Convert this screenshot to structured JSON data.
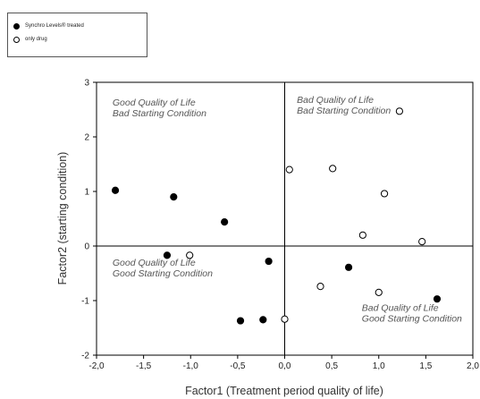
{
  "chart_data": {
    "type": "scatter",
    "xlabel": "Factor1 (Treatment period quality of life)",
    "ylabel": "Factor2 (starting condition)",
    "xlim": [
      -2.0,
      2.0
    ],
    "ylim": [
      -2,
      3
    ],
    "x_ticks": [
      "-2,0",
      "-1,5",
      "-1,0",
      "-0,5",
      "0,0",
      "0,5",
      "1,0",
      "1,5",
      "2,0"
    ],
    "y_ticks": [
      "-2",
      "-1",
      "0",
      "1",
      "2",
      "3"
    ],
    "reference_lines": {
      "x": 0,
      "y": 0
    },
    "legend": {
      "position": "top-left outside"
    },
    "series": [
      {
        "name": "Synchro Levels® treated",
        "marker": "filled-circle",
        "color": "#000000",
        "points": [
          [
            -1.8,
            1.02
          ],
          [
            -1.18,
            0.9
          ],
          [
            -0.64,
            0.44
          ],
          [
            -1.25,
            -0.17
          ],
          [
            -0.17,
            -0.28
          ],
          [
            -0.47,
            -1.37
          ],
          [
            -0.23,
            -1.35
          ],
          [
            0.68,
            -0.39
          ],
          [
            1.62,
            -0.97
          ]
        ]
      },
      {
        "name": "only drug",
        "marker": "open-circle",
        "color": "#000000",
        "points": [
          [
            1.22,
            2.47
          ],
          [
            0.05,
            1.4
          ],
          [
            0.51,
            1.42
          ],
          [
            1.06,
            0.96
          ],
          [
            0.83,
            0.2
          ],
          [
            1.46,
            0.08
          ],
          [
            -1.01,
            -0.17
          ],
          [
            0.38,
            -0.74
          ],
          [
            1.0,
            -0.85
          ],
          [
            0.0,
            -1.34
          ]
        ]
      }
    ],
    "annotations": [
      {
        "quadrant": "top-left",
        "lines": [
          "Good Quality of Life",
          "Bad Starting Condition"
        ]
      },
      {
        "quadrant": "top-right",
        "lines": [
          "Bad Quality of Life",
          "Bad Starting Condition"
        ]
      },
      {
        "quadrant": "bottom-left",
        "lines": [
          "Good Quality of Life",
          "Good Starting Condition"
        ]
      },
      {
        "quadrant": "bottom-right",
        "lines": [
          "Bad Quality of Life",
          "Good Starting Condition"
        ]
      }
    ]
  }
}
